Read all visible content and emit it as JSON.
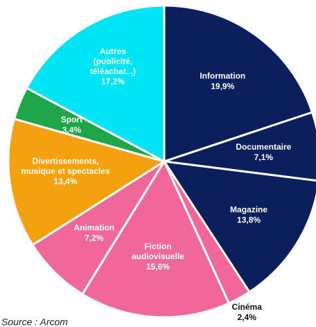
{
  "chart_data": {
    "type": "pie",
    "categories": [
      "Information",
      "Documentaire",
      "Magazine",
      "Cinéma",
      "Fiction\naudiovisuelle",
      "Animation",
      "Divertissements,\nmusique et spectacles",
      "Sport",
      "Autres\n(publicité,\ntéléachat...)"
    ],
    "values": [
      19.9,
      7.1,
      13.8,
      2.4,
      15.6,
      7.2,
      13.4,
      3.4,
      17.2
    ],
    "value_labels": [
      "19,9%",
      "7,1%",
      "13,8%",
      "2,4%",
      "15,6%",
      "7,2%",
      "13,4%",
      "3,4%",
      "17,2%"
    ],
    "colors": [
      "#0b1f5c",
      "#0b1f5c",
      "#0b1f5c",
      "#f2679a",
      "#f2679a",
      "#f2679a",
      "#f5a00f",
      "#1fa64a",
      "#00e5f5"
    ],
    "source": "Source : Arcom"
  }
}
